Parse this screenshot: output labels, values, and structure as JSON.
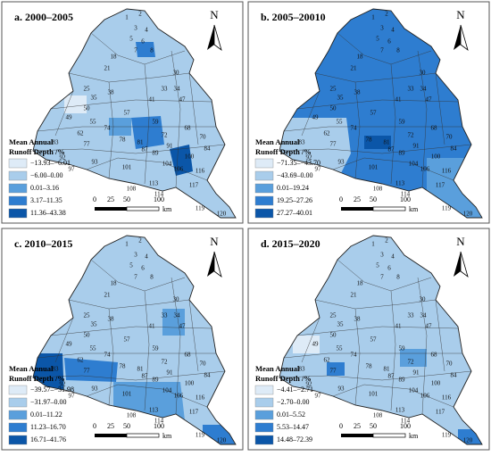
{
  "panels": [
    {
      "title": "a. 2000–2005",
      "legend_title": [
        "Mean Annual",
        "Runoff Depth /%"
      ],
      "legend_labels": [
        "−13.93–−6.01",
        "−6.00–0.00",
        "0.01–3.16",
        "3.17–11.35",
        "11.36–43.38"
      ],
      "legend_colors": [
        "#deebf7",
        "#a9cdeb",
        "#5a9fdc",
        "#2e7dd0",
        "#0b56a8"
      ]
    },
    {
      "title": "b. 2005–20010",
      "legend_title": [
        "Mean Annual",
        "Runoff Depth /%"
      ],
      "legend_labels": [
        "−71.35–−43.70",
        "−43.69–0.00",
        "0.01–19.24",
        "19.25–27.26",
        "27.27–40.01"
      ],
      "legend_colors": [
        "#deebf7",
        "#a9cdeb",
        "#5a9fdc",
        "#2e7dd0",
        "#0b56a8"
      ]
    },
    {
      "title": "c. 2010–2015",
      "legend_title": [
        "Mean Annual",
        "Runoff Depth /%"
      ],
      "legend_labels": [
        "−39.57–−31.98",
        "−31.97–0.00",
        "0.01–11.22",
        "11.23–16.70",
        "16.71–41.76"
      ],
      "legend_colors": [
        "#deebf7",
        "#a9cdeb",
        "#5a9fdc",
        "#2e7dd0",
        "#0b56a8"
      ]
    },
    {
      "title": "d. 2015–2020",
      "legend_title": [
        "Mean Annual",
        "Runoff Depth /%"
      ],
      "legend_labels": [
        "−4.41–−2.71",
        "−2.70–0.00",
        "0.01–5.52",
        "5.53–14.47",
        "14.48–72.39"
      ],
      "legend_colors": [
        "#deebf7",
        "#a9cdeb",
        "#5a9fdc",
        "#2e7dd0",
        "#0b56a8"
      ]
    }
  ],
  "north_label": "N",
  "scale_labels": [
    "0",
    "25",
    "50",
    "100"
  ],
  "scale_unit": "km",
  "subbasin_labels": [
    "1",
    "2",
    "3",
    "4",
    "5",
    "6",
    "7",
    "8",
    "18",
    "21",
    "30",
    "25",
    "33",
    "34",
    "35",
    "38",
    "41",
    "47",
    "49",
    "50",
    "55",
    "57",
    "59",
    "62",
    "68",
    "70",
    "72",
    "74",
    "77",
    "78",
    "81",
    "83",
    "84",
    "87",
    "89",
    "91",
    "92",
    "93",
    "97",
    "100",
    "101",
    "104",
    "106",
    "108",
    "113",
    "114",
    "116",
    "117",
    "119",
    "120"
  ]
}
